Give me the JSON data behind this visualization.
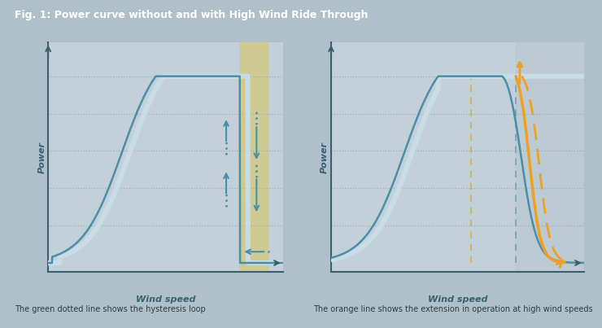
{
  "title": "Fig. 1: Power curve without and with High Wind Ride Through",
  "background_color": "#afc0cb",
  "plot_bg_color": "#c4d0d9",
  "caption_left": "The green dotted line shows the hysteresis loop",
  "caption_right": "The orange line shows the extension in operation at high wind speeds",
  "xlabel": "Wind speed",
  "ylabel": "Power",
  "title_color": "#ffffff",
  "axis_color": "#3a6070",
  "curve_color": "#4a8fa8",
  "curve_inner_color": "#c8dce6",
  "highlight_color": "#d4c97a",
  "highlight_alpha": 0.75,
  "gray_zone_color": "#b5c5ce",
  "gray_zone_alpha": 0.5,
  "orange_color": "#f0a020",
  "arrow_color": "#4a8fa8",
  "dashed_vert_color_gold": "#c8b840",
  "dashed_vert_color_blue": "#7aA0b0",
  "text_color": "#2a3d44",
  "grid_color": "#9ab0ba"
}
